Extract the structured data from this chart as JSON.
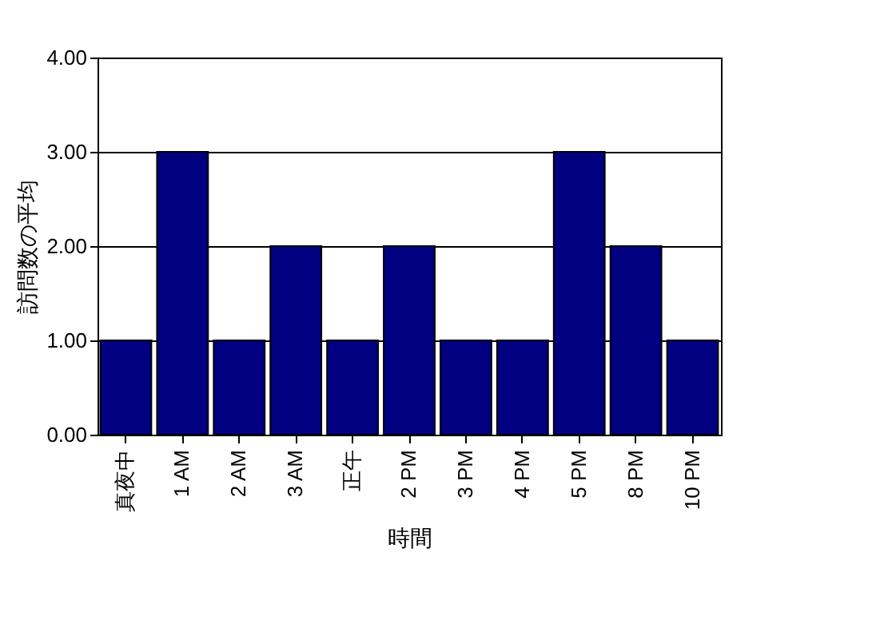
{
  "chart_data": {
    "type": "bar",
    "xlabel": "時間",
    "ylabel": "訪問数の平均",
    "categories": [
      "真夜中",
      "1 AM",
      "2 AM",
      "3 AM",
      "正午",
      "2 PM",
      "3 PM",
      "4 PM",
      "5 PM",
      "8 PM",
      "10 PM"
    ],
    "values": [
      1,
      3,
      1,
      2,
      1,
      2,
      1,
      1,
      3,
      2,
      1
    ],
    "color": "#000080",
    "ylim": [
      0,
      4
    ],
    "yticks": [
      {
        "value": 0,
        "label": "0.00"
      },
      {
        "value": 1,
        "label": "1.00"
      },
      {
        "value": 2,
        "label": "2.00"
      },
      {
        "value": 3,
        "label": "3.00"
      },
      {
        "value": 4,
        "label": "4.00"
      }
    ],
    "grid": "y"
  }
}
